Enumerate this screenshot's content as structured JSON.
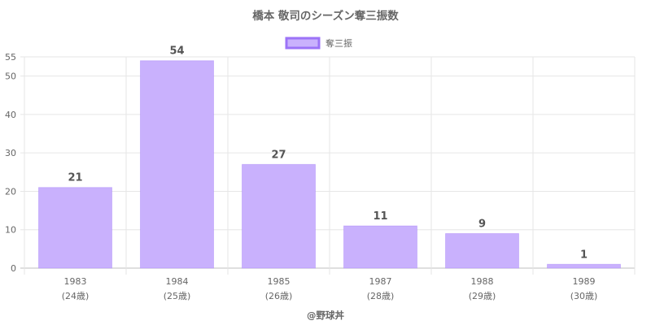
{
  "chart_data": {
    "type": "bar",
    "title": "橋本 敬司のシーズン奪三振数",
    "categories": [
      "1983",
      "1984",
      "1985",
      "1987",
      "1988",
      "1989"
    ],
    "category_sublabels": [
      "(24歳)",
      "(25歳)",
      "(26歳)",
      "(28歳)",
      "(29歳)",
      "(30歳)"
    ],
    "series": [
      {
        "name": "奪三振",
        "values": [
          21,
          54,
          27,
          11,
          9,
          1
        ],
        "color": "#c9b1fd",
        "border_color": "#9c73f7"
      }
    ],
    "y_ticks": [
      0,
      10,
      20,
      30,
      40,
      50,
      55
    ],
    "ylim": [
      0,
      55
    ],
    "grid": true,
    "legend_position": "top",
    "credit": "@野球丼"
  }
}
